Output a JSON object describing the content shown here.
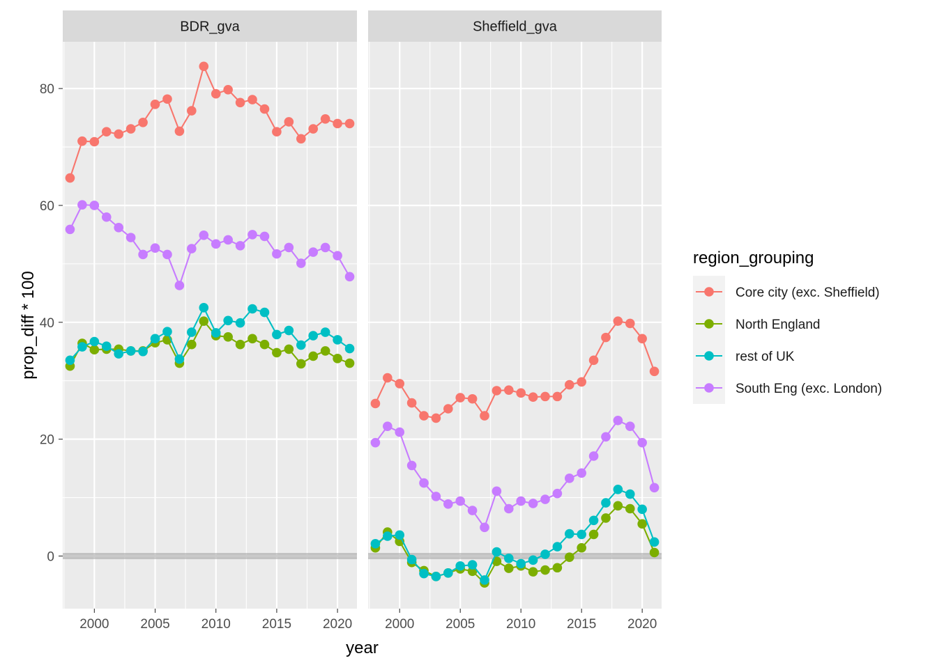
{
  "chart_data": {
    "type": "line",
    "xlabel": "year",
    "ylabel": "prop_diff * 100",
    "xlim": [
      1997.4,
      2021.6
    ],
    "ylim": [
      -9,
      88
    ],
    "x_ticks": [
      2000,
      2005,
      2010,
      2015,
      2020
    ],
    "x_tick_labels": [
      "2000",
      "2005",
      "2010",
      "2015",
      "2020"
    ],
    "y_ticks": [
      0,
      20,
      40,
      60,
      80
    ],
    "y_tick_labels": [
      "0",
      "20",
      "40",
      "60",
      "80"
    ],
    "reference_line_y": 0,
    "grid": true,
    "legend": {
      "title": "region_grouping",
      "position": "right",
      "entries": [
        "Core city (exc. Sheffield)",
        "North England",
        "rest of UK",
        "South Eng (exc. London)"
      ]
    },
    "series_colors": {
      "Core city (exc. Sheffield)": "#F8766D",
      "North England": "#7CAE00",
      "rest of UK": "#00BFC4",
      "South Eng (exc. London)": "#C77CFF"
    },
    "x": [
      1998,
      1999,
      2000,
      2001,
      2002,
      2003,
      2004,
      2005,
      2006,
      2007,
      2008,
      2009,
      2010,
      2011,
      2012,
      2013,
      2014,
      2015,
      2016,
      2017,
      2018,
      2019,
      2020,
      2021
    ],
    "panels": [
      {
        "title": "BDR_gva",
        "series": [
          {
            "name": "Core city (exc. Sheffield)",
            "values": [
              64.7,
              71.0,
              70.9,
              72.6,
              72.2,
              73.1,
              74.2,
              77.3,
              78.2,
              72.7,
              76.2,
              83.8,
              79.1,
              79.8,
              77.6,
              78.1,
              76.5,
              72.6,
              74.3,
              71.4,
              73.1,
              74.8,
              74.0,
              74.0
            ]
          },
          {
            "name": "North England",
            "values": [
              32.5,
              36.4,
              35.3,
              35.4,
              35.4,
              35.1,
              35.1,
              36.5,
              37.0,
              33.0,
              36.2,
              40.2,
              37.7,
              37.5,
              36.2,
              37.2,
              36.2,
              34.8,
              35.4,
              32.9,
              34.2,
              35.1,
              33.8,
              33.0
            ]
          },
          {
            "name": "rest of UK",
            "values": [
              33.5,
              35.8,
              36.7,
              35.9,
              34.6,
              35.1,
              35.0,
              37.2,
              38.4,
              33.7,
              38.3,
              42.5,
              38.2,
              40.3,
              39.9,
              42.3,
              41.7,
              37.9,
              38.6,
              36.1,
              37.7,
              38.3,
              37.0,
              35.5
            ]
          },
          {
            "name": "South Eng (exc. London)",
            "values": [
              55.9,
              60.1,
              60.0,
              58.0,
              56.2,
              54.5,
              51.6,
              52.7,
              51.6,
              46.3,
              52.6,
              54.9,
              53.4,
              54.1,
              53.1,
              55.0,
              54.7,
              51.7,
              52.8,
              50.1,
              52.0,
              52.8,
              51.4,
              47.8
            ]
          }
        ]
      },
      {
        "title": "Sheffield_gva",
        "series": [
          {
            "name": "Core city (exc. Sheffield)",
            "values": [
              26.1,
              30.5,
              29.5,
              26.2,
              24.0,
              23.6,
              25.2,
              27.1,
              26.9,
              24.0,
              28.3,
              28.4,
              27.9,
              27.2,
              27.3,
              27.3,
              29.3,
              29.8,
              33.5,
              37.4,
              40.2,
              39.8,
              37.2,
              31.6
            ]
          },
          {
            "name": "North England",
            "values": [
              1.4,
              4.1,
              2.5,
              -1.1,
              -2.5,
              -3.5,
              -2.9,
              -2.2,
              -2.6,
              -4.6,
              -0.9,
              -2.1,
              -1.7,
              -2.7,
              -2.4,
              -2.0,
              -0.2,
              1.4,
              3.7,
              6.5,
              8.6,
              8.1,
              5.5,
              0.6
            ]
          },
          {
            "name": "rest of UK",
            "values": [
              2.1,
              3.4,
              3.6,
              -0.6,
              -3.0,
              -3.5,
              -2.9,
              -1.7,
              -1.5,
              -4.1,
              0.7,
              -0.4,
              -1.3,
              -0.7,
              0.3,
              1.6,
              3.8,
              3.7,
              6.1,
              9.1,
              11.4,
              10.6,
              8.0,
              2.4
            ]
          },
          {
            "name": "South Eng (exc. London)",
            "values": [
              19.4,
              22.2,
              21.2,
              15.5,
              12.5,
              10.2,
              8.9,
              9.4,
              7.8,
              4.9,
              11.1,
              8.1,
              9.4,
              9.0,
              9.7,
              10.7,
              13.3,
              14.2,
              17.1,
              20.4,
              23.2,
              22.2,
              19.4,
              11.7
            ]
          }
        ]
      }
    ]
  }
}
